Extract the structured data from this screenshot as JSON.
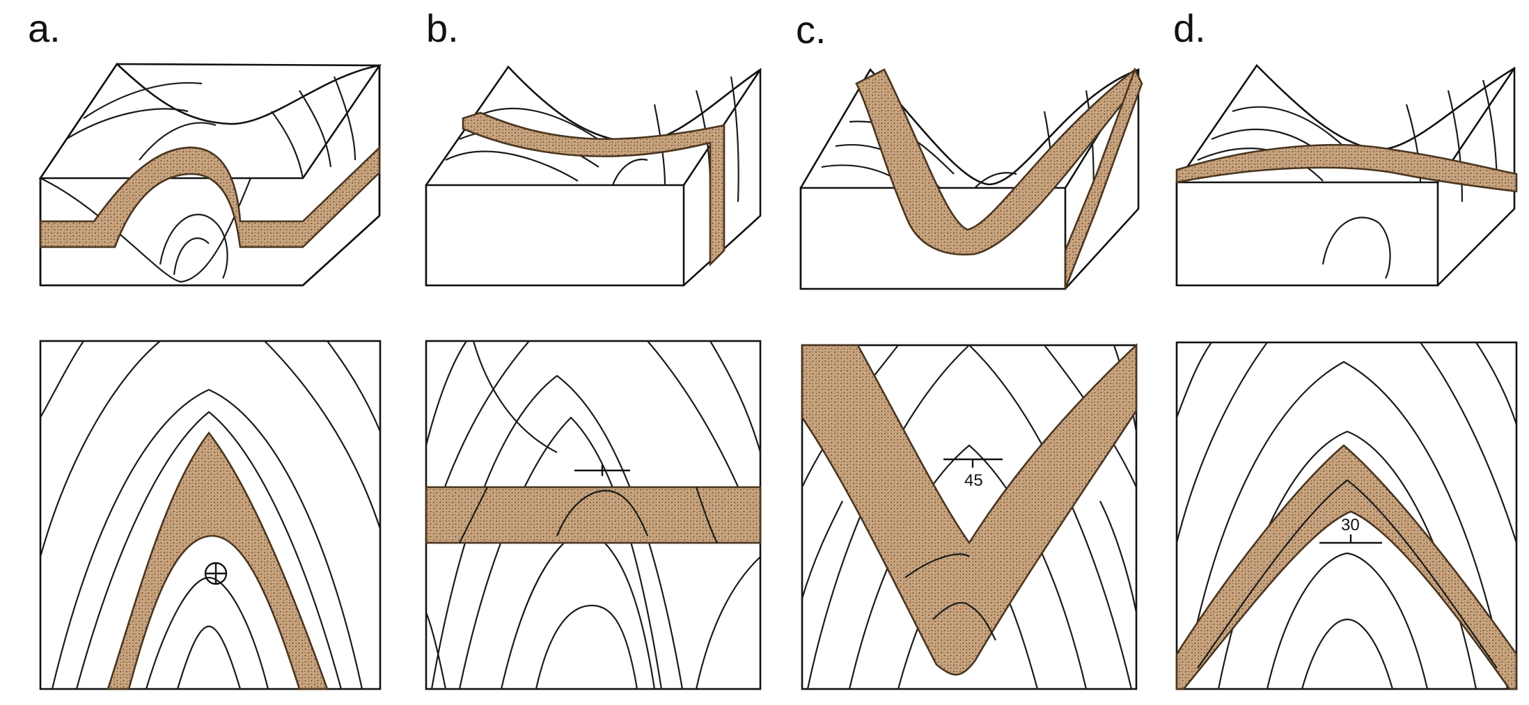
{
  "panels": [
    {
      "letter": "a."
    },
    {
      "letter": "b."
    },
    {
      "letter": "c.",
      "dip": "45"
    },
    {
      "letter": "d.",
      "dip": "30"
    }
  ],
  "colors": {
    "bed_fill": "#c9a47e",
    "bed_edge": "#4a3520",
    "line": "#111111",
    "background": "#ffffff"
  }
}
